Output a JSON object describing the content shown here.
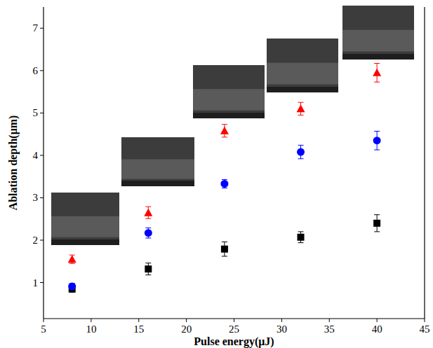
{
  "chart_data": {
    "type": "scatter",
    "x_label": "Pulse energy(μJ)",
    "y_label": "Ablation depth(μm)",
    "x": [
      8,
      16,
      24,
      32,
      40
    ],
    "series": [
      {
        "color": "#000000",
        "marker": "square",
        "values": [
          0.85,
          1.32,
          1.79,
          2.07,
          2.4
        ],
        "errors": [
          0.08,
          0.14,
          0.17,
          0.13,
          0.2
        ]
      },
      {
        "color": "#0000ff",
        "marker": "circle",
        "values": [
          0.91,
          2.17,
          3.33,
          4.08,
          4.35
        ],
        "errors": [
          0.07,
          0.12,
          0.1,
          0.16,
          0.22
        ]
      },
      {
        "color": "#ff0000",
        "marker": "triangle",
        "values": [
          1.55,
          2.65,
          4.58,
          5.1,
          5.95
        ],
        "errors": [
          0.1,
          0.14,
          0.15,
          0.15,
          0.22
        ]
      }
    ],
    "xlim": [
      5,
      45
    ],
    "xticks": [
      5,
      10,
      15,
      20,
      25,
      30,
      35,
      40,
      45
    ],
    "ylim": [
      0.15,
      7.5
    ],
    "yticks": [
      1,
      2,
      3,
      4,
      5,
      6,
      7
    ],
    "grid": false
  }
}
